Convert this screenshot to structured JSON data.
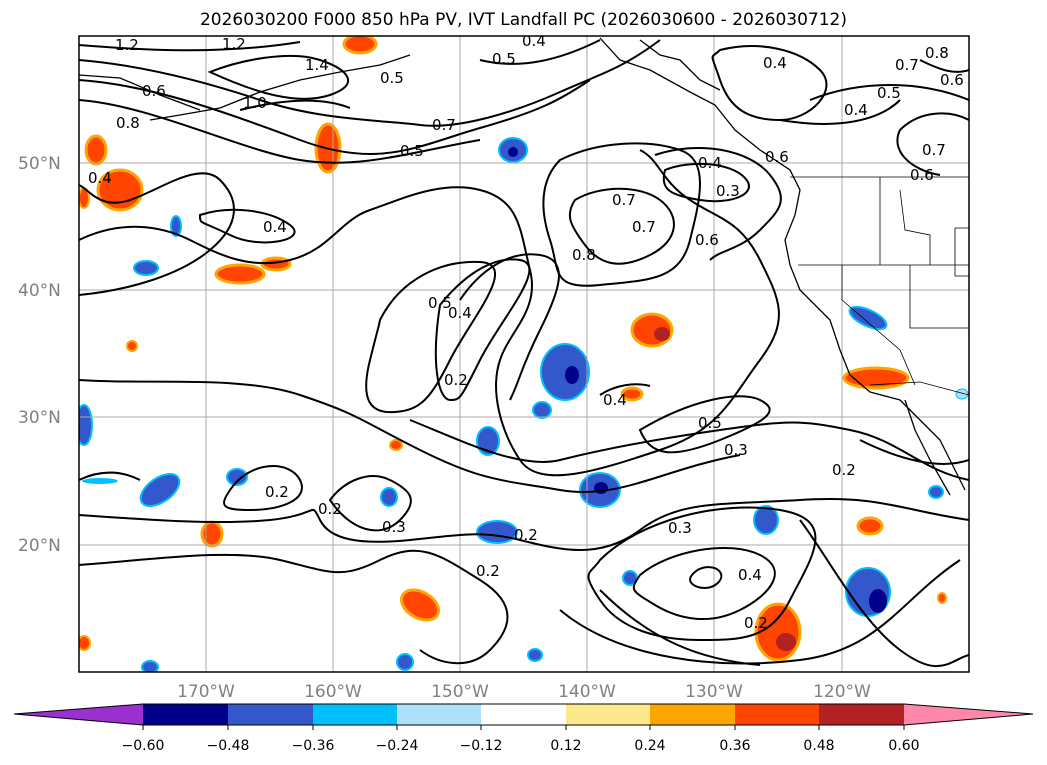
{
  "title": "2026030200 F000 850 hPa PV, IVT Landfall PC (2026030600 - 2026030712)",
  "lat_labels": [
    "50°N",
    "40°N",
    "30°N",
    "20°N"
  ],
  "lon_labels": [
    "170°W",
    "160°W",
    "150°W",
    "140°W",
    "130°W",
    "120°W"
  ],
  "colorbar": {
    "tick_labels": [
      "−0.60",
      "−0.48",
      "−0.36",
      "−0.24",
      "−0.12",
      "0.12",
      "0.24",
      "0.36",
      "0.48",
      "0.60"
    ],
    "colors": [
      "#9b30d0",
      "#00008b",
      "#3358cc",
      "#00bfff",
      "#ade1fa",
      "#ffffff",
      "#fde98c",
      "#ffa500",
      "#ff4500",
      "#b22222",
      "#ff88aa"
    ]
  },
  "contour_labels": [
    "1.2",
    "1.2",
    "1.4",
    "1.0",
    "0.6",
    "0.4",
    "0.7",
    "0.5",
    "0.4",
    "0.5",
    "0.4",
    "0.7",
    "0.8",
    "0.5",
    "0.4",
    "0.4",
    "0.3",
    "0.7",
    "0.6",
    "0.8",
    "0.5",
    "0.4",
    "0.2",
    "0.4",
    "0.5",
    "0.3",
    "0.2",
    "0.2",
    "0.2",
    "0.3",
    "0.2",
    "0.2",
    "0.3",
    "0.4",
    "0.2",
    "0.7",
    "0.6",
    "0.4",
    "0.5",
    "0.6",
    "0.8",
    "0.7",
    "0.6"
  ]
}
